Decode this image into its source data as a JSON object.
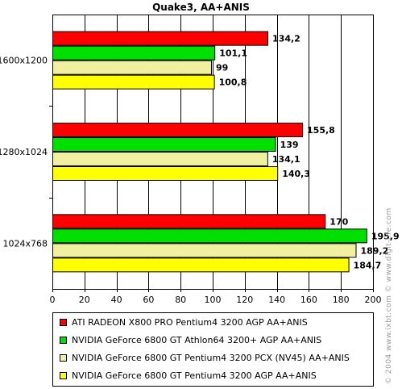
{
  "chart_data": {
    "type": "bar",
    "orientation": "horizontal",
    "title": "Quake3, AA+ANIS",
    "categories": [
      "1600x1200",
      "1280x1024",
      "1024x768"
    ],
    "series": [
      {
        "name": "ATI RADEON X800 PRO Pentium4 3200 AGP AA+ANIS",
        "color": "#ff0000",
        "values": [
          134.2,
          155.8,
          170
        ],
        "labels": [
          "134,2",
          "155,8",
          "170"
        ]
      },
      {
        "name": "NVIDIA GeForce 6800 GT Athlon64 3200+ AGP AA+ANIS",
        "color": "#00e000",
        "values": [
          101.1,
          139,
          195.9
        ],
        "labels": [
          "101,1",
          "139",
          "195,9"
        ]
      },
      {
        "name": "NVIDIA GeForce 6800 GT Pentium4 3200 PCX (NV45) AA+ANIS",
        "color": "#f0f0a0",
        "values": [
          99,
          134.1,
          189.2
        ],
        "labels": [
          "99",
          "134,1",
          "189,2"
        ]
      },
      {
        "name": "NVIDIA GeForce 6800 GT Pentium4 3200 AGP AA+ANIS",
        "color": "#ffff00",
        "values": [
          100.8,
          140.3,
          184.7
        ],
        "labels": [
          "100,8",
          "140,3",
          "184,7"
        ]
      }
    ],
    "xlim": [
      0,
      200
    ],
    "xticks": [
      "0",
      "20",
      "40",
      "60",
      "80",
      "100",
      "120",
      "140",
      "160",
      "180",
      "200"
    ],
    "grid": true,
    "legend_position": "bottom",
    "plot_background": "#ffffff"
  },
  "watermark": "© 2004 www.ixbt.com  © www.digit-life.com"
}
